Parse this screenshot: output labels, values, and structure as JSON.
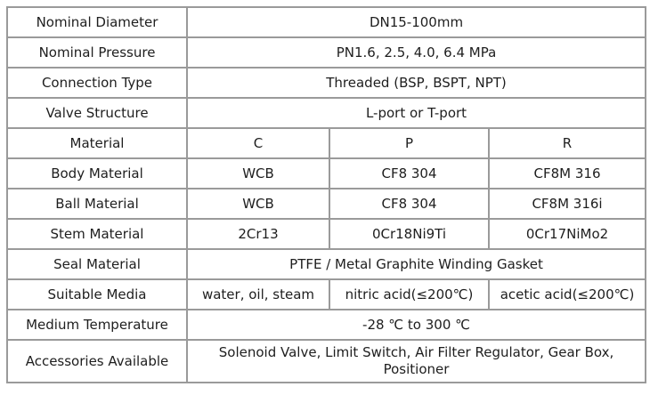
{
  "rows": [
    {
      "label": "Nominal Diameter",
      "value": "DN15-100mm"
    },
    {
      "label": "Nominal Pressure",
      "value": "PN1.6, 2.5, 4.0, 6.4 MPa"
    },
    {
      "label": "Connection Type",
      "value": "Threaded  (BSP, BSPT, NPT)"
    },
    {
      "label": "Valve Structure",
      "value": "L-port or T-port"
    },
    {
      "label": "Material",
      "values": [
        "C",
        "P",
        "R"
      ]
    },
    {
      "label": "Body Material",
      "values": [
        "WCB",
        "CF8 304",
        "CF8M 316"
      ]
    },
    {
      "label": "Ball Material",
      "values": [
        "WCB",
        "CF8 304",
        "CF8M 316i"
      ]
    },
    {
      "label": "Stem Material",
      "values": [
        "2Cr13",
        "0Cr18Ni9Ti",
        "0Cr17NiMo2"
      ]
    },
    {
      "label": "Seal Material",
      "value": "PTFE / Metal Graphite Winding Gasket"
    },
    {
      "label": "Suitable Media",
      "values": [
        "water, oil, steam",
        "nitric acid(≤200℃)",
        "acetic acid(≤200℃)"
      ]
    },
    {
      "label": "Medium Temperature",
      "value": "-28 ℃ to 300 ℃"
    },
    {
      "label": "Accessories Available",
      "value": "Solenoid Valve, Limit Switch, Air Filter Regulator, Gear Box, Positioner"
    }
  ]
}
